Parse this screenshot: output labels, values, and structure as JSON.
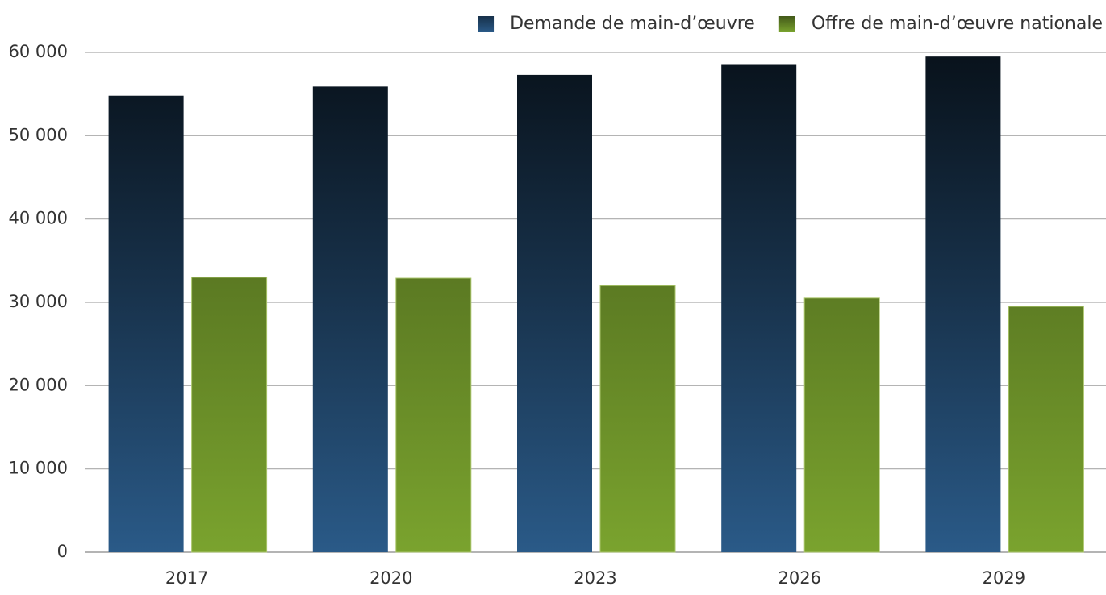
{
  "chart_data": {
    "type": "bar",
    "categories": [
      "2017",
      "2020",
      "2023",
      "2026",
      "2029"
    ],
    "series": [
      {
        "name": "Demande de main-d’œuvre",
        "color": "#2a5a88",
        "values": [
          54800,
          55900,
          57300,
          58500,
          59500
        ]
      },
      {
        "name": "Offre de main-d’œuvre nationale",
        "color": "#7aa32e",
        "values": [
          33000,
          32900,
          32000,
          30500,
          29500
        ]
      }
    ],
    "ylim": [
      0,
      60000
    ],
    "yticks": [
      0,
      {
        "value": 10000,
        "label": "10 000"
      },
      {
        "value": 20000,
        "label": "20 000"
      },
      {
        "value": 30000,
        "label": "30 000"
      },
      {
        "value": 40000,
        "label": "40 000"
      },
      {
        "value": 50000,
        "label": "50 000"
      },
      {
        "value": 60000,
        "label": "60 000"
      }
    ],
    "grid": true,
    "legend": "top-right"
  }
}
